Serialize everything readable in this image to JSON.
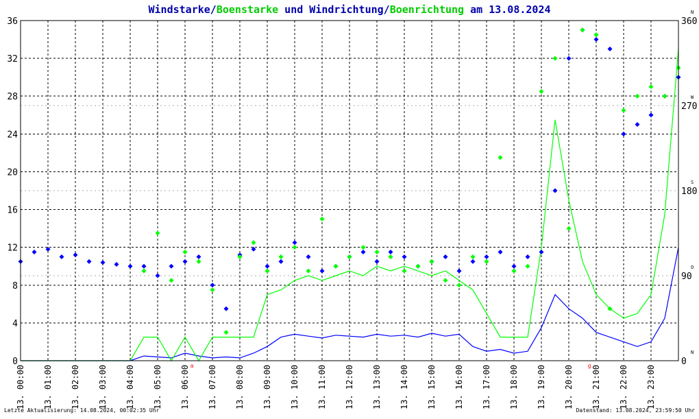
{
  "colors": {
    "wind": "#0000ff",
    "gust": "#00ff00",
    "title": "#0000aa",
    "grid": "#000000",
    "axis_text": "#000000",
    "marker": "#ff0000",
    "background": "#ffffff"
  },
  "title": {
    "part1": "Windstarke",
    "sep1": "/",
    "part2": "Boenstarke",
    "part3": " und Windrichtung",
    "sep2": "/",
    "part4": "Boenrichtung",
    "part5": " am 13.08.2024"
  },
  "footer": {
    "left": "Letzte Aktualisierung: 14.08.2024, 00:02:35 Uhr",
    "right": "Datenstand: 13.08.2024, 23:59:50 Uhr"
  },
  "chart_data": {
    "type": "line",
    "x_unit": "hour of day",
    "x_range": [
      0,
      24
    ],
    "x_tick_labels": [
      "13. 00:00",
      "13. 01:00",
      "13. 02:00",
      "13. 03:00",
      "13. 04:00",
      "13. 05:00",
      "13. 06:00",
      "13. 07:00",
      "13. 08:00",
      "13. 09:00",
      "13. 10:00",
      "13. 11:00",
      "13. 12:00",
      "13. 13:00",
      "13. 14:00",
      "13. 15:00",
      "13. 16:00",
      "13. 17:00",
      "13. 18:00",
      "13. 19:00",
      "13. 20:00",
      "13. 21:00",
      "13. 22:00",
      "13. 23:00"
    ],
    "y_left": {
      "min": 0,
      "max": 36,
      "ticks": [
        0,
        4,
        8,
        12,
        16,
        20,
        24,
        28,
        32,
        36
      ]
    },
    "y_right": {
      "min": 0,
      "max": 360,
      "ticks": [
        {
          "value": 0,
          "label": "0",
          "dir": "N"
        },
        {
          "value": 90,
          "label": "90",
          "dir": "O"
        },
        {
          "value": 180,
          "label": "180",
          "dir": "S"
        },
        {
          "value": 270,
          "label": "270",
          "dir": "W"
        },
        {
          "value": 360,
          "label": "360",
          "dir": "N"
        }
      ]
    },
    "grid": true,
    "series": [
      {
        "name": "Windstarke",
        "style": "line",
        "x": [
          0,
          0.5,
          1,
          1.5,
          2,
          2.5,
          3,
          3.5,
          4,
          4.5,
          5,
          5.5,
          6,
          6.5,
          7,
          7.5,
          8,
          8.5,
          9,
          9.5,
          10,
          10.5,
          11,
          11.5,
          12,
          12.5,
          13,
          13.5,
          14,
          14.5,
          15,
          15.5,
          16,
          16.5,
          17,
          17.5,
          18,
          18.5,
          19,
          19.5,
          20,
          20.5,
          21,
          21.5,
          22,
          22.5,
          23,
          23.5,
          24
        ],
        "y": [
          0,
          0,
          0,
          0,
          0,
          0,
          0,
          0,
          0,
          0.5,
          0.4,
          0.3,
          0.8,
          0.5,
          0.3,
          0.4,
          0.3,
          0.8,
          1.5,
          2.5,
          2.8,
          2.6,
          2.4,
          2.7,
          2.6,
          2.5,
          2.8,
          2.6,
          2.7,
          2.5,
          2.9,
          2.6,
          2.8,
          1.5,
          1.0,
          1.2,
          0.8,
          1.0,
          3.5,
          7.0,
          5.5,
          4.5,
          3.0,
          2.5,
          2.0,
          1.5,
          2.0,
          4.5,
          12.0
        ]
      },
      {
        "name": "Boenstarke",
        "style": "line",
        "x": [
          0,
          0.5,
          1,
          1.5,
          2,
          2.5,
          3,
          3.5,
          4,
          4.5,
          5,
          5.5,
          6,
          6.5,
          7,
          7.5,
          8,
          8.5,
          9,
          9.5,
          10,
          10.5,
          11,
          11.5,
          12,
          12.5,
          13,
          13.5,
          14,
          14.5,
          15,
          15.5,
          16,
          16.5,
          17,
          17.5,
          18,
          18.5,
          19,
          19.5,
          20,
          20.5,
          21,
          21.5,
          22,
          22.5,
          23,
          23.5,
          24
        ],
        "y": [
          0,
          0,
          0,
          0,
          0,
          0,
          0,
          0,
          0,
          2.5,
          2.5,
          0,
          2.5,
          0,
          2.5,
          2.5,
          2.5,
          2.5,
          7.0,
          7.5,
          8.5,
          9.0,
          8.5,
          9.0,
          9.5,
          9.0,
          10.0,
          9.5,
          10.0,
          9.5,
          9.0,
          9.5,
          8.5,
          7.5,
          5.0,
          2.5,
          2.5,
          2.5,
          12.0,
          25.5,
          17.0,
          10.5,
          7.0,
          5.5,
          4.5,
          5.0,
          7.0,
          15.5,
          33.0
        ]
      },
      {
        "name": "Windrichtung",
        "style": "dots",
        "x": [
          0,
          0.5,
          1,
          1.5,
          2,
          2.5,
          3,
          3.5,
          4,
          4.5,
          5,
          5.5,
          6,
          6.5,
          7,
          7.5,
          8,
          8.5,
          9,
          9.5,
          10,
          10.5,
          11,
          11.5,
          12,
          12.5,
          13,
          13.5,
          14,
          14.5,
          15,
          15.5,
          16,
          16.5,
          17,
          17.5,
          18,
          18.5,
          19,
          19.5,
          20,
          20.5,
          21,
          21.5,
          22,
          22.5,
          23,
          23.5,
          24
        ],
        "y": [
          105,
          115,
          118,
          110,
          112,
          105,
          104,
          102,
          100,
          100,
          90,
          100,
          105,
          110,
          80,
          55,
          112,
          118,
          100,
          105,
          125,
          110,
          95,
          100,
          110,
          115,
          105,
          115,
          110,
          100,
          105,
          110,
          95,
          105,
          110,
          115,
          100,
          110,
          115,
          180,
          320,
          350,
          340,
          330,
          240,
          250,
          260,
          280,
          300
        ]
      },
      {
        "name": "Boenrichtung",
        "style": "dots",
        "x": [
          4.5,
          5,
          5.5,
          6,
          6.5,
          7,
          7.5,
          8,
          8.5,
          9,
          9.5,
          10,
          10.5,
          11,
          11.5,
          12,
          12.5,
          13,
          13.5,
          14,
          14.5,
          15,
          15.5,
          16,
          16.5,
          17,
          17.5,
          18,
          18.5,
          19,
          19.5,
          20,
          20.5,
          21,
          21.5,
          22,
          22.5,
          23,
          23.5,
          24
        ],
        "y": [
          95,
          135,
          85,
          115,
          105,
          75,
          30,
          110,
          125,
          95,
          110,
          120,
          95,
          150,
          100,
          110,
          120,
          115,
          110,
          95,
          100,
          105,
          85,
          80,
          110,
          105,
          215,
          95,
          100,
          285,
          320,
          140,
          350,
          345,
          55,
          265,
          280,
          290,
          280,
          310
        ]
      }
    ]
  }
}
